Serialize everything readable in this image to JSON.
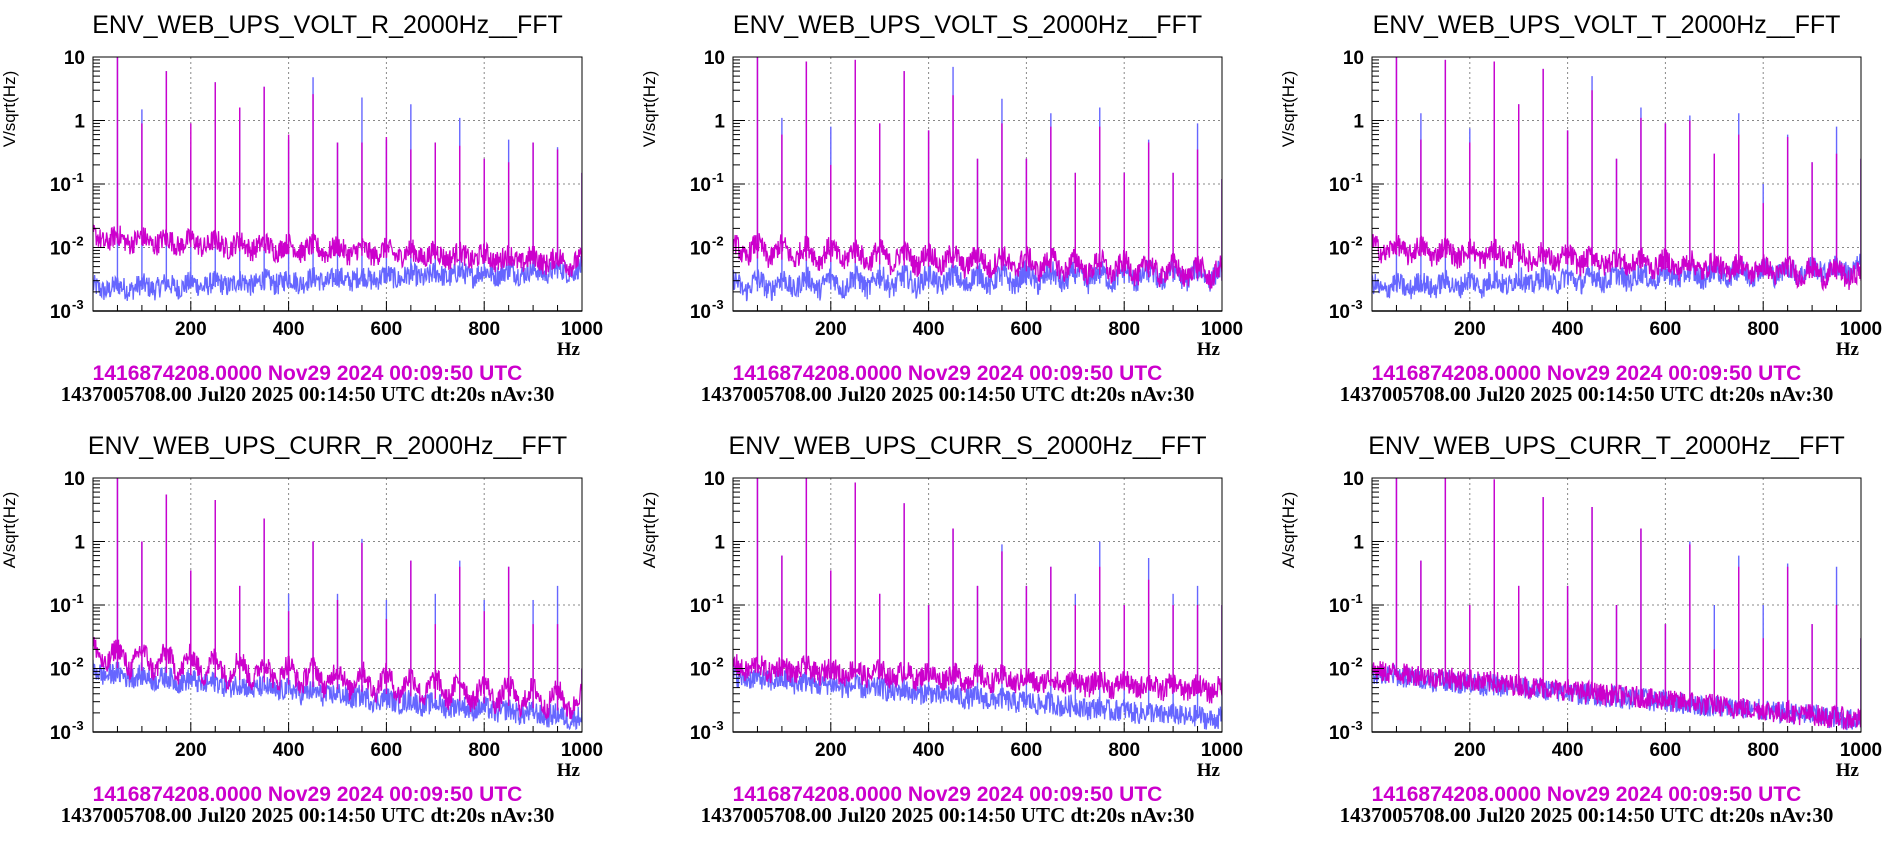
{
  "colors": {
    "reference": "#cc00cc",
    "current": "#6666ff",
    "grid": "#888888",
    "axis": "#000000"
  },
  "chart_data": [
    {
      "type": "line",
      "title": "ENV_WEB_UPS_VOLT_R_2000Hz__FFT",
      "ylabel": "V/sqrt(Hz)",
      "xlabel": "Hz",
      "xlim": [
        0,
        1000
      ],
      "ylim": [
        0.001,
        10
      ],
      "yscale": "log",
      "grid": true,
      "x_ticks": [
        "200",
        "400",
        "600",
        "800",
        "1000"
      ],
      "y_ticks": [
        "10",
        "1",
        "10^-1",
        "10^-2",
        "10^-3"
      ],
      "reference_label": "1416874208.0000 Nov29 2024 00:09:50 UTC",
      "current_label": "1437005708.00 Jul20 2025 00:14:50 UTC dt:20s nAv:30",
      "harmonics_hz": [
        50,
        100,
        150,
        200,
        250,
        300,
        350,
        400,
        450,
        500,
        550,
        600,
        650,
        700,
        750,
        800,
        850,
        900,
        950,
        1000
      ],
      "series": [
        {
          "name": "reference (Nov29 2024)",
          "peaks": [
            10,
            0.9,
            6,
            0.9,
            4,
            1.6,
            3.4,
            0.6,
            2.6,
            0.45,
            0.45,
            0.55,
            0.35,
            0.45,
            0.4,
            0.25,
            0.22,
            0.45,
            0.35,
            0.15
          ],
          "floor_start": 0.012,
          "floor_end": 0.005,
          "hump_amp": 0.6
        },
        {
          "name": "current (Jul20 2025)",
          "peaks": [
            10,
            1.5,
            6,
            0.35,
            4,
            1.6,
            3.4,
            0.5,
            4.8,
            0.45,
            2.3,
            0.5,
            1.8,
            0.45,
            1.1,
            0.25,
            0.5,
            0.45,
            0.38,
            0.15
          ],
          "floor_start": 0.002,
          "floor_end": 0.004,
          "hump_amp": 0.4
        }
      ]
    },
    {
      "type": "line",
      "title": "ENV_WEB_UPS_VOLT_S_2000Hz__FFT",
      "ylabel": "V/sqrt(Hz)",
      "xlabel": "Hz",
      "xlim": [
        0,
        1000
      ],
      "ylim": [
        0.001,
        10
      ],
      "yscale": "log",
      "grid": true,
      "x_ticks": [
        "200",
        "400",
        "600",
        "800",
        "1000"
      ],
      "y_ticks": [
        "10",
        "1",
        "10^-1",
        "10^-2",
        "10^-3"
      ],
      "reference_label": "1416874208.0000 Nov29 2024 00:09:50 UTC",
      "current_label": "1437005708.00 Jul20 2025 00:14:50 UTC dt:20s nAv:30",
      "harmonics_hz": [
        50,
        100,
        150,
        200,
        250,
        300,
        350,
        400,
        450,
        500,
        550,
        600,
        650,
        700,
        750,
        800,
        850,
        900,
        950,
        1000
      ],
      "series": [
        {
          "name": "reference (Nov29 2024)",
          "peaks": [
            10,
            0.6,
            8.5,
            0.2,
            9,
            0.9,
            6,
            0.7,
            2.5,
            0.25,
            0.9,
            0.25,
            0.8,
            0.15,
            0.8,
            0.15,
            0.45,
            0.15,
            0.35,
            0.12
          ],
          "floor_start": 0.007,
          "floor_end": 0.003,
          "hump_amp": 1.2
        },
        {
          "name": "current (Jul20 2025)",
          "peaks": [
            10,
            1.1,
            8.5,
            0.8,
            9,
            0.9,
            6,
            0.7,
            7,
            0.25,
            2.2,
            0.25,
            1.3,
            0.15,
            1.6,
            0.15,
            0.5,
            0.15,
            0.9,
            0.12
          ],
          "floor_start": 0.002,
          "floor_end": 0.003,
          "hump_amp": 1.0
        }
      ]
    },
    {
      "type": "line",
      "title": "ENV_WEB_UPS_VOLT_T_2000Hz__FFT",
      "ylabel": "V/sqrt(Hz)",
      "xlabel": "Hz",
      "xlim": [
        0,
        1000
      ],
      "ylim": [
        0.001,
        10
      ],
      "yscale": "log",
      "grid": true,
      "x_ticks": [
        "200",
        "400",
        "600",
        "800",
        "1000"
      ],
      "y_ticks": [
        "10",
        "1",
        "10^-1",
        "10^-2",
        "10^-3"
      ],
      "reference_label": "1416874208.0000 Nov29 2024 00:09:50 UTC",
      "current_label": "1437005708.00 Jul20 2025 00:14:50 UTC dt:20s nAv:30",
      "harmonics_hz": [
        50,
        100,
        150,
        200,
        250,
        300,
        350,
        400,
        450,
        500,
        550,
        600,
        650,
        700,
        750,
        800,
        850,
        900,
        950,
        1000
      ],
      "series": [
        {
          "name": "reference (Nov29 2024)",
          "peaks": [
            10,
            0.5,
            9,
            0.45,
            8.5,
            1.8,
            6.5,
            0.7,
            3,
            0.25,
            1.1,
            0.9,
            1,
            0.3,
            0.6,
            0.05,
            0.55,
            0.22,
            0.3,
            0.25
          ],
          "floor_start": 0.008,
          "floor_end": 0.003,
          "hump_amp": 0.8
        },
        {
          "name": "current (Jul20 2025)",
          "peaks": [
            10,
            1.3,
            9,
            0.75,
            8.5,
            1.8,
            6.5,
            0.7,
            5,
            0.25,
            1.6,
            0.9,
            1.2,
            0.3,
            1.3,
            0.1,
            0.6,
            0.22,
            0.8,
            0.25
          ],
          "floor_start": 0.002,
          "floor_end": 0.004,
          "hump_amp": 0.6
        }
      ]
    },
    {
      "type": "line",
      "title": "ENV_WEB_UPS_CURR_R_2000Hz__FFT",
      "ylabel": "A/sqrt(Hz)",
      "xlabel": "Hz",
      "xlim": [
        0,
        1000
      ],
      "ylim": [
        0.001,
        10
      ],
      "yscale": "log",
      "grid": true,
      "x_ticks": [
        "200",
        "400",
        "600",
        "800",
        "1000"
      ],
      "y_ticks": [
        "10",
        "1",
        "10^-1",
        "10^-2",
        "10^-3"
      ],
      "reference_label": "1416874208.0000 Nov29 2024 00:09:50 UTC",
      "current_label": "1437005708.00 Jul20 2025 00:14:50 UTC dt:20s nAv:30",
      "harmonics_hz": [
        50,
        100,
        150,
        200,
        250,
        300,
        350,
        400,
        450,
        500,
        550,
        600,
        650,
        700,
        750,
        800,
        850,
        900,
        950,
        1000
      ],
      "series": [
        {
          "name": "reference (Nov29 2024)",
          "peaks": [
            10,
            1,
            5.5,
            0.35,
            4.5,
            0.2,
            2.3,
            0.08,
            1,
            0.12,
            0.95,
            0.06,
            0.5,
            0.05,
            0.4,
            0.08,
            0.4,
            0.05,
            0.05,
            0.01
          ],
          "floor_start": 0.011,
          "floor_end": 0.002,
          "hump_amp": 1.8
        },
        {
          "name": "current (Jul20 2025)",
          "peaks": [
            10,
            1,
            5.5,
            0.35,
            4.5,
            0.2,
            2.3,
            0.15,
            1,
            0.15,
            1.1,
            0.12,
            0.5,
            0.15,
            0.5,
            0.12,
            0.4,
            0.12,
            0.2,
            0.01
          ],
          "floor_start": 0.008,
          "floor_end": 0.0015,
          "hump_amp": 0.3
        }
      ]
    },
    {
      "type": "line",
      "title": "ENV_WEB_UPS_CURR_S_2000Hz__FFT",
      "ylabel": "A/sqrt(Hz)",
      "xlabel": "Hz",
      "xlim": [
        0,
        1000
      ],
      "ylim": [
        0.001,
        10
      ],
      "yscale": "log",
      "grid": true,
      "x_ticks": [
        "200",
        "400",
        "600",
        "800",
        "1000"
      ],
      "y_ticks": [
        "10",
        "1",
        "10^-1",
        "10^-2",
        "10^-3"
      ],
      "reference_label": "1416874208.0000 Nov29 2024 00:09:50 UTC",
      "current_label": "1437005708.00 Jul20 2025 00:14:50 UTC dt:20s nAv:30",
      "harmonics_hz": [
        50,
        100,
        150,
        200,
        250,
        300,
        350,
        400,
        450,
        500,
        550,
        600,
        650,
        700,
        750,
        800,
        850,
        900,
        950,
        1000
      ],
      "series": [
        {
          "name": "reference (Nov29 2024)",
          "peaks": [
            10,
            0.6,
            10,
            0.35,
            8.5,
            0.15,
            4,
            0.1,
            1.6,
            0.2,
            0.7,
            0.2,
            0.4,
            0.1,
            0.4,
            0.1,
            0.25,
            0.1,
            0.1,
            0.1
          ],
          "floor_start": 0.009,
          "floor_end": 0.004,
          "hump_amp": 0.6
        },
        {
          "name": "current (Jul20 2025)",
          "peaks": [
            10,
            0.6,
            10,
            0.35,
            8.5,
            0.15,
            4,
            0.1,
            1.6,
            0.2,
            0.9,
            0.2,
            0.4,
            0.15,
            1,
            0.1,
            0.55,
            0.15,
            0.2,
            0.1
          ],
          "floor_start": 0.007,
          "floor_end": 0.0015,
          "hump_amp": 0.2
        }
      ]
    },
    {
      "type": "line",
      "title": "ENV_WEB_UPS_CURR_T_2000Hz__FFT",
      "ylabel": "A/sqrt(Hz)",
      "xlabel": "Hz",
      "xlim": [
        0,
        1000
      ],
      "ylim": [
        0.001,
        10
      ],
      "yscale": "log",
      "grid": true,
      "x_ticks": [
        "200",
        "400",
        "600",
        "800",
        "1000"
      ],
      "y_ticks": [
        "10",
        "1",
        "10^-1",
        "10^-2",
        "10^-3"
      ],
      "reference_label": "1416874208.0000 Nov29 2024 00:09:50 UTC",
      "current_label": "1437005708.00 Jul20 2025 00:14:50 UTC dt:20s nAv:30",
      "harmonics_hz": [
        50,
        100,
        150,
        200,
        250,
        300,
        350,
        400,
        450,
        500,
        550,
        600,
        650,
        700,
        750,
        800,
        850,
        900,
        950,
        1000
      ],
      "series": [
        {
          "name": "reference (Nov29 2024)",
          "peaks": [
            10,
            0.5,
            10,
            0.1,
            9.5,
            0.2,
            5,
            0.2,
            3.5,
            0.1,
            1.6,
            0.05,
            0.9,
            0.02,
            0.4,
            0.03,
            0.4,
            0.05,
            0.1,
            0.03
          ],
          "floor_start": 0.009,
          "floor_end": 0.0015,
          "hump_amp": 0.1
        },
        {
          "name": "current (Jul20 2025)",
          "peaks": [
            10,
            0.5,
            10,
            0.1,
            9.5,
            0.2,
            5,
            0.2,
            3.5,
            0.1,
            1.6,
            0.05,
            1,
            0.1,
            0.6,
            0.1,
            0.45,
            0.05,
            0.4,
            0.03
          ],
          "floor_start": 0.008,
          "floor_end": 0.0015,
          "hump_amp": 0.1
        }
      ]
    }
  ]
}
